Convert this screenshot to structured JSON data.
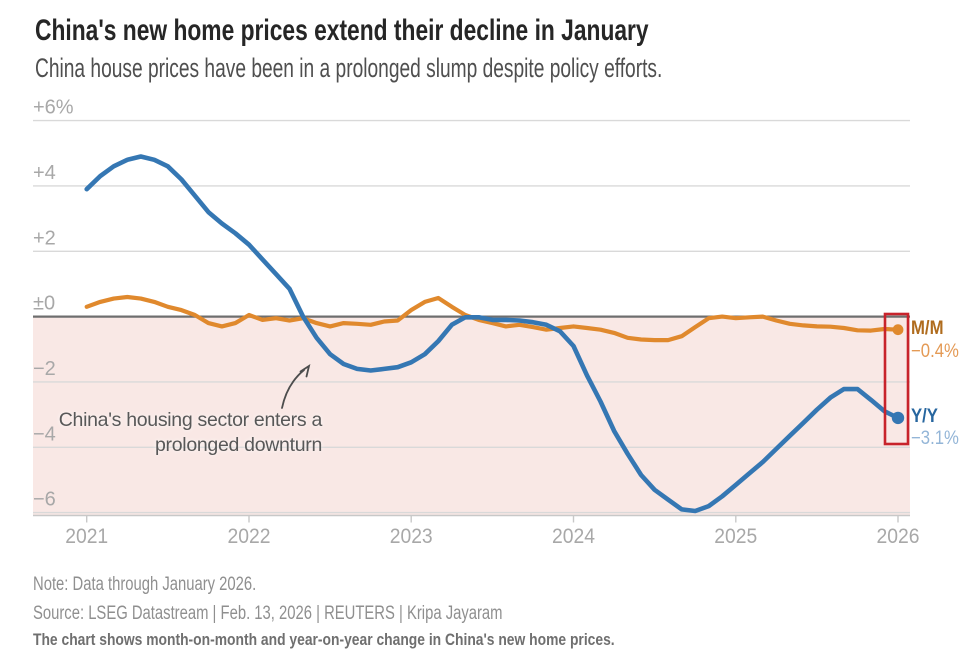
{
  "chart_data": {
    "type": "line",
    "title": "China's new home prices extend their decline in January",
    "subtitle": "China house prices have been in a prolonged slump despite policy efforts.",
    "x_unit": "month",
    "x_start": "2021-01",
    "x_end": "2026-01",
    "x_tick_labels": [
      "2021",
      "2022",
      "2023",
      "2024",
      "2025",
      "2026"
    ],
    "y_axis": [
      {
        "label": "+6%",
        "value": 6
      },
      {
        "label": "+4",
        "value": 4
      },
      {
        "label": "+2",
        "value": 2
      },
      {
        "label": "±0",
        "value": 0
      },
      {
        "label": "−2",
        "value": -2
      },
      {
        "label": "−4",
        "value": -4
      },
      {
        "label": "−6",
        "value": -6
      }
    ],
    "ylim": [
      -6.6,
      6.6
    ],
    "grid": true,
    "legend_position": "right-end-of-lines",
    "shading": {
      "region": "below zero",
      "fill": "#f9e8e5"
    },
    "zero_line_color": "#6e6e6e",
    "highlight_box": {
      "color": "#c8232b",
      "covers": "latest data points"
    },
    "series": [
      {
        "name": "M/M",
        "color": "#e0892d",
        "label_color": "#b06c1e",
        "value_label": "−0.4%",
        "value_label_color": "#e49a55",
        "latest_value": -0.4,
        "values": [
          0.3,
          0.45,
          0.55,
          0.6,
          0.55,
          0.45,
          0.3,
          0.2,
          0.05,
          -0.2,
          -0.3,
          -0.2,
          0.05,
          -0.1,
          -0.05,
          -0.12,
          -0.05,
          -0.2,
          -0.3,
          -0.2,
          -0.22,
          -0.25,
          -0.15,
          -0.12,
          0.2,
          0.45,
          0.57,
          0.3,
          0.05,
          -0.1,
          -0.2,
          -0.3,
          -0.25,
          -0.32,
          -0.4,
          -0.35,
          -0.3,
          -0.35,
          -0.4,
          -0.5,
          -0.65,
          -0.7,
          -0.72,
          -0.72,
          -0.6,
          -0.32,
          -0.05,
          0.0,
          -0.05,
          -0.02,
          0.0,
          -0.12,
          -0.22,
          -0.27,
          -0.3,
          -0.31,
          -0.35,
          -0.42,
          -0.43,
          -0.38,
          -0.4
        ]
      },
      {
        "name": "Y/Y",
        "color": "#3577b3",
        "label_color": "#27669f",
        "value_label": "−3.1%",
        "value_label_color": "#93b5d7",
        "latest_value": -3.1,
        "values": [
          3.9,
          4.3,
          4.6,
          4.8,
          4.9,
          4.8,
          4.6,
          4.2,
          3.7,
          3.2,
          2.85,
          2.55,
          2.2,
          1.75,
          1.3,
          0.85,
          0.0,
          -0.65,
          -1.15,
          -1.45,
          -1.6,
          -1.65,
          -1.6,
          -1.55,
          -1.4,
          -1.15,
          -0.75,
          -0.25,
          -0.02,
          -0.02,
          -0.1,
          -0.1,
          -0.12,
          -0.17,
          -0.25,
          -0.45,
          -0.9,
          -1.8,
          -2.6,
          -3.5,
          -4.2,
          -4.85,
          -5.3,
          -5.6,
          -5.9,
          -5.95,
          -5.8,
          -5.5,
          -5.15,
          -4.8,
          -4.45,
          -4.05,
          -3.65,
          -3.25,
          -2.85,
          -2.48,
          -2.22,
          -2.22,
          -2.55,
          -2.9,
          -3.1
        ]
      }
    ],
    "annotation": {
      "line1": "China's housing sector enters a",
      "line2": "prolonged downturn"
    }
  },
  "footer": {
    "note": "Note: Data through January 2026.",
    "source": "Source: LSEG Datastream | Feb. 13, 2026 | REUTERS | Kripa Jayaram",
    "caption": "The chart shows month-on-month and year-on-year change in China's new home prices."
  }
}
